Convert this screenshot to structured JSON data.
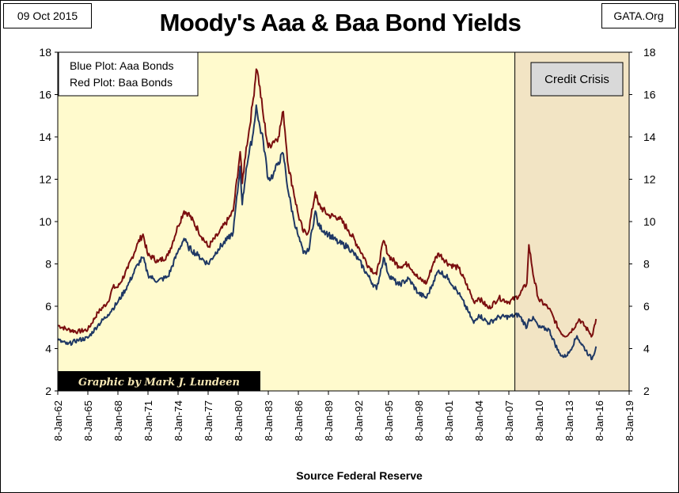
{
  "header": {
    "date": "09 Oct 2015",
    "source": "GATA.Org",
    "title": "Moody's Aaa & Baa Bond Yields"
  },
  "legend_box": {
    "line1": "Blue Plot: Aaa Bonds",
    "line2": "Red Plot: Baa Bonds"
  },
  "crisis_box": {
    "label": "Credit Crisis"
  },
  "credit": "Graphic by Mark J. Lundeen",
  "x_caption": "Source Federal Reserve",
  "colors": {
    "plot_bg": "#fffacd",
    "crisis_bg": "#f2e4c4",
    "aaa": "#1f3864",
    "baa": "#7b0f0f",
    "crisis_box_fill": "#d9d9d9",
    "credit_bg": "#000000",
    "credit_text": "#f5e6b3"
  },
  "chart_data": {
    "type": "line",
    "title": "Moody's Aaa & Baa Bond Yields",
    "ylim": [
      2,
      18
    ],
    "y_ticks": [
      2,
      4,
      6,
      8,
      10,
      12,
      14,
      16,
      18
    ],
    "x_ticks": [
      "8-Jan-62",
      "8-Jan-65",
      "8-Jan-68",
      "8-Jan-71",
      "8-Jan-74",
      "8-Jan-77",
      "8-Jan-80",
      "8-Jan-83",
      "8-Jan-86",
      "8-Jan-89",
      "8-Jan-92",
      "8-Jan-95",
      "8-Jan-98",
      "8-Jan-01",
      "8-Jan-04",
      "8-Jan-07",
      "8-Jan-10",
      "8-Jan-13",
      "8-Jan-16",
      "8-Jan-19"
    ],
    "xlim": [
      1962.0,
      2019.0
    ],
    "shaded_region": [
      2007.6,
      2019.0
    ],
    "grid": false,
    "series": [
      {
        "name": "Aaa Bonds",
        "x": [
          1962.0,
          1963.0,
          1964.0,
          1965.0,
          1966.0,
          1967.0,
          1967.5,
          1968.0,
          1969.0,
          1970.0,
          1970.5,
          1971.0,
          1971.5,
          1972.0,
          1973.0,
          1974.0,
          1974.6,
          1975.0,
          1976.0,
          1977.0,
          1978.0,
          1979.0,
          1979.5,
          1980.2,
          1980.4,
          1980.8,
          1981.0,
          1981.5,
          1981.8,
          1982.0,
          1982.5,
          1983.0,
          1983.5,
          1984.0,
          1984.5,
          1985.0,
          1985.5,
          1986.0,
          1986.5,
          1987.0,
          1987.7,
          1988.0,
          1989.0,
          1990.0,
          1991.0,
          1992.0,
          1993.0,
          1993.8,
          1994.5,
          1995.0,
          1996.0,
          1997.0,
          1998.0,
          1998.8,
          1999.5,
          2000.0,
          2001.0,
          2002.0,
          2003.0,
          2003.5,
          2004.0,
          2005.0,
          2006.0,
          2007.0,
          2008.0,
          2008.8,
          2009.0,
          2009.5,
          2010.0,
          2011.0,
          2012.0,
          2012.5,
          2013.0,
          2013.8,
          2014.0,
          2015.0,
          2015.3,
          2015.7
        ],
        "values": [
          4.4,
          4.2,
          4.4,
          4.5,
          5.1,
          5.6,
          5.9,
          6.2,
          7.0,
          8.0,
          8.3,
          7.5,
          7.3,
          7.2,
          7.4,
          8.6,
          9.2,
          8.8,
          8.4,
          8.0,
          8.7,
          9.2,
          9.5,
          12.6,
          10.8,
          12.5,
          13.0,
          14.2,
          15.5,
          14.8,
          13.8,
          12.0,
          12.2,
          12.8,
          13.2,
          11.4,
          10.2,
          9.3,
          8.5,
          8.6,
          10.5,
          9.8,
          9.4,
          9.0,
          8.8,
          8.2,
          7.4,
          6.8,
          8.3,
          7.5,
          7.0,
          7.3,
          6.6,
          6.4,
          7.2,
          7.7,
          7.3,
          6.6,
          5.7,
          5.2,
          5.6,
          5.2,
          5.5,
          5.5,
          5.6,
          5.0,
          5.4,
          5.4,
          5.0,
          4.9,
          3.8,
          3.6,
          3.8,
          4.6,
          4.4,
          3.7,
          3.5,
          4.1
        ]
      },
      {
        "name": "Baa Bonds",
        "x": [
          1962.0,
          1963.0,
          1964.0,
          1965.0,
          1966.0,
          1967.0,
          1967.5,
          1968.0,
          1969.0,
          1970.0,
          1970.5,
          1971.0,
          1971.5,
          1972.0,
          1973.0,
          1974.0,
          1974.6,
          1975.0,
          1976.0,
          1977.0,
          1978.0,
          1979.0,
          1979.5,
          1980.2,
          1980.4,
          1980.8,
          1981.0,
          1981.5,
          1981.8,
          1982.0,
          1982.5,
          1983.0,
          1983.5,
          1984.0,
          1984.5,
          1985.0,
          1985.5,
          1986.0,
          1986.5,
          1987.0,
          1987.7,
          1988.0,
          1989.0,
          1990.0,
          1991.0,
          1992.0,
          1993.0,
          1993.8,
          1994.5,
          1995.0,
          1996.0,
          1997.0,
          1998.0,
          1998.8,
          1999.5,
          2000.0,
          2001.0,
          2002.0,
          2003.0,
          2003.5,
          2004.0,
          2005.0,
          2006.0,
          2007.0,
          2008.0,
          2008.8,
          2009.0,
          2009.5,
          2010.0,
          2011.0,
          2012.0,
          2012.5,
          2013.0,
          2013.8,
          2014.0,
          2015.0,
          2015.3,
          2015.7
        ],
        "values": [
          5.1,
          4.9,
          4.8,
          4.9,
          5.7,
          6.2,
          6.9,
          6.9,
          7.8,
          9.0,
          9.4,
          8.4,
          8.3,
          8.1,
          8.4,
          9.8,
          10.5,
          10.4,
          9.6,
          8.8,
          9.4,
          10.1,
          10.5,
          13.3,
          11.8,
          13.5,
          14.0,
          15.8,
          17.2,
          16.9,
          15.0,
          13.5,
          13.8,
          14.0,
          15.2,
          12.6,
          11.5,
          10.3,
          9.5,
          9.5,
          11.4,
          10.8,
          10.3,
          10.2,
          9.6,
          8.8,
          7.9,
          7.5,
          9.1,
          8.4,
          7.9,
          8.0,
          7.3,
          7.1,
          8.1,
          8.5,
          8.0,
          7.8,
          6.8,
          6.2,
          6.4,
          5.9,
          6.4,
          6.2,
          6.5,
          7.1,
          8.9,
          7.3,
          6.3,
          5.9,
          4.9,
          4.6,
          4.7,
          5.2,
          5.4,
          4.8,
          4.6,
          5.4
        ]
      }
    ]
  }
}
